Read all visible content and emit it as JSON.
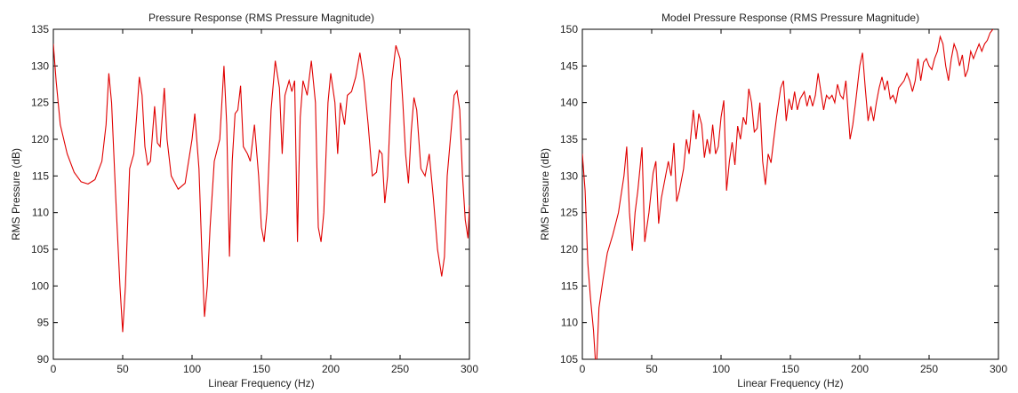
{
  "chart_data": [
    {
      "type": "line",
      "title": "Pressure Response (RMS Pressure Magnitude)",
      "xlabel": "Linear Frequency (Hz)",
      "ylabel": "RMS Pressure (dB)",
      "color": "#e00000",
      "xlim": [
        0,
        300
      ],
      "xticks": [
        0,
        50,
        100,
        150,
        200,
        250,
        300
      ],
      "ylim": [
        90,
        135
      ],
      "yticks": [
        90,
        95,
        100,
        105,
        110,
        115,
        120,
        125,
        130,
        135
      ],
      "x": [
        0,
        2,
        5,
        10,
        15,
        20,
        25,
        30,
        35,
        38,
        40,
        42,
        45,
        48,
        50,
        52,
        55,
        58,
        60,
        62,
        64,
        66,
        68,
        70,
        73,
        75,
        77,
        80,
        82,
        85,
        90,
        95,
        100,
        102,
        105,
        107,
        109,
        111,
        113,
        116,
        120,
        123,
        125,
        127,
        129,
        131,
        133,
        135,
        137,
        140,
        142,
        145,
        148,
        150,
        152,
        154,
        157,
        160,
        163,
        165,
        167,
        170,
        172,
        174,
        176,
        177,
        178,
        180,
        183,
        186,
        189,
        191,
        193,
        195,
        198,
        200,
        203,
        205,
        207,
        210,
        212,
        215,
        218,
        221,
        224,
        227,
        230,
        233,
        235,
        237,
        239,
        241,
        244,
        247,
        250,
        252,
        254,
        256,
        258,
        260,
        262,
        265,
        268,
        271,
        274,
        277,
        280,
        282,
        284,
        286,
        289,
        291,
        293,
        295,
        297,
        299,
        300
      ],
      "values": [
        133,
        128,
        122,
        118,
        115.5,
        114.2,
        113.9,
        114.5,
        117,
        122,
        129,
        125,
        112,
        100,
        93.7,
        100,
        116,
        118,
        123,
        128.5,
        126,
        119,
        116.5,
        117,
        124.5,
        119.5,
        119,
        127,
        120,
        115,
        113.2,
        114,
        120,
        123.5,
        116,
        105,
        95.8,
        100,
        108,
        117,
        120,
        130,
        122,
        104,
        117,
        123.5,
        124,
        127.3,
        119,
        118,
        117,
        122,
        115,
        108,
        106,
        110,
        124,
        130.7,
        127,
        118,
        126,
        128,
        126.5,
        128,
        106,
        115,
        123,
        128,
        126,
        130.7,
        125,
        108,
        106,
        110,
        125,
        129,
        125,
        118,
        125,
        122,
        126,
        126.5,
        128.5,
        131.8,
        128,
        122,
        115,
        115.5,
        118.5,
        118,
        111.3,
        115,
        128,
        132.8,
        131,
        125,
        118,
        114,
        121,
        125.7,
        124,
        116,
        115,
        118,
        112,
        105,
        101.3,
        104,
        115,
        119.5,
        126,
        126.6,
        124,
        115,
        109,
        106.5,
        111
      ]
    },
    {
      "type": "line",
      "title": "Model Pressure Response (RMS Pressure Magnitude)",
      "xlabel": "Linear Frequency (Hz)",
      "ylabel": "RMS Pressure (dB)",
      "color": "#e00000",
      "xlim": [
        0,
        300
      ],
      "xticks": [
        0,
        50,
        100,
        150,
        200,
        250,
        300
      ],
      "ylim": [
        105,
        150
      ],
      "yticks": [
        105,
        110,
        115,
        120,
        125,
        130,
        135,
        140,
        145,
        150
      ],
      "x": [
        0,
        2,
        4,
        6,
        8,
        10,
        12,
        15,
        18,
        22,
        26,
        30,
        32,
        34,
        36,
        38,
        40,
        43,
        45,
        48,
        51,
        53,
        55,
        57,
        60,
        62,
        64,
        66,
        68,
        70,
        73,
        75,
        77,
        80,
        82,
        84,
        86,
        88,
        90,
        92,
        94,
        96,
        98,
        100,
        102,
        104,
        106,
        108,
        110,
        112,
        114,
        116,
        118,
        120,
        122,
        124,
        126,
        128,
        130,
        132,
        134,
        136,
        138,
        140,
        143,
        145,
        147,
        149,
        151,
        153,
        155,
        157,
        160,
        162,
        164,
        166,
        168,
        170,
        172,
        174,
        176,
        178,
        180,
        182,
        184,
        186,
        188,
        190,
        193,
        195,
        197,
        200,
        202,
        204,
        206,
        208,
        210,
        212,
        214,
        216,
        218,
        220,
        222,
        224,
        226,
        228,
        230,
        232,
        234,
        236,
        238,
        240,
        242,
        244,
        246,
        248,
        250,
        252,
        254,
        256,
        258,
        260,
        262,
        264,
        266,
        268,
        270,
        272,
        274,
        276,
        278,
        280,
        282,
        284,
        286,
        288,
        290,
        292,
        294,
        296,
        298,
        300
      ],
      "values": [
        133,
        128,
        118,
        113,
        109,
        103,
        112,
        116,
        119.5,
        122,
        125,
        130,
        134,
        125,
        119.8,
        125,
        128,
        133.9,
        121,
        125,
        130.4,
        132,
        123.5,
        127,
        130,
        132,
        130,
        134.5,
        126.5,
        128,
        131,
        135,
        133,
        139,
        135,
        138.5,
        137,
        132.5,
        135,
        133,
        137,
        133,
        134,
        138,
        140.3,
        128,
        132,
        134.6,
        131.5,
        136.8,
        135,
        138,
        137,
        141.9,
        140,
        136,
        136.5,
        140,
        132,
        128.8,
        133,
        131.8,
        135,
        138,
        142,
        143,
        137.5,
        140.5,
        139,
        141.5,
        139,
        140.5,
        141.5,
        139.5,
        141,
        139.5,
        141,
        144,
        141.5,
        139,
        141,
        140.5,
        141,
        140,
        142.5,
        141,
        140.5,
        143,
        135,
        137,
        140,
        145,
        146.8,
        142,
        137.5,
        139.5,
        137.5,
        140,
        142,
        143.5,
        141.7,
        143,
        140.5,
        141,
        140,
        142,
        142.5,
        143,
        144,
        143,
        141.5,
        143,
        146,
        143,
        145.5,
        146,
        145,
        144.5,
        146,
        147,
        149,
        148,
        145,
        143,
        146,
        148,
        147,
        145,
        146.5,
        143.5,
        144.5,
        147,
        146,
        147,
        148,
        147,
        148,
        148.5,
        149.5,
        150,
        150.5,
        151
      ]
    }
  ]
}
